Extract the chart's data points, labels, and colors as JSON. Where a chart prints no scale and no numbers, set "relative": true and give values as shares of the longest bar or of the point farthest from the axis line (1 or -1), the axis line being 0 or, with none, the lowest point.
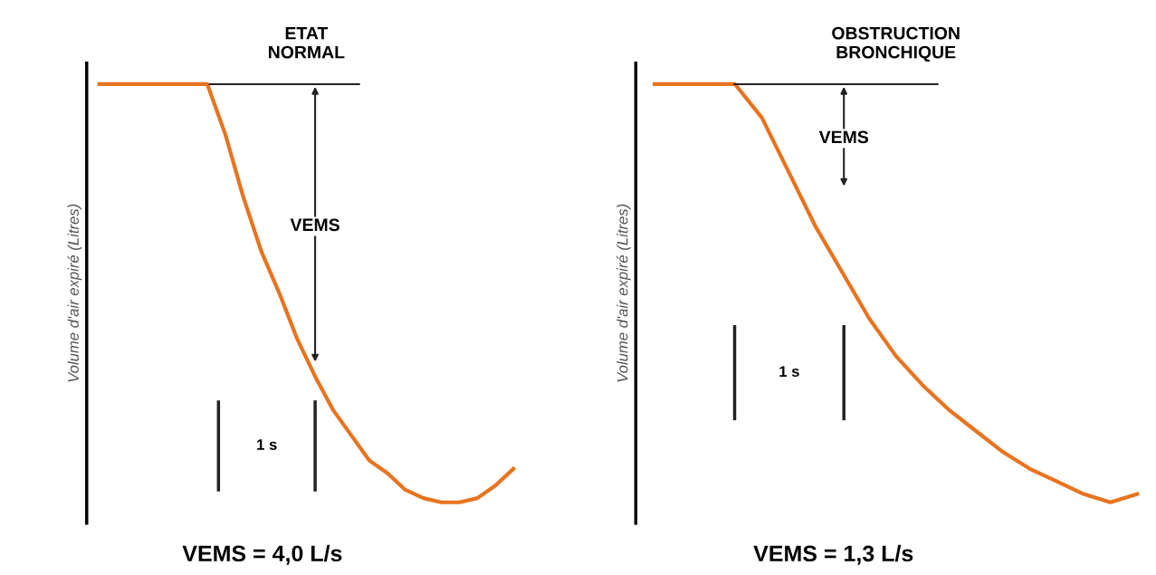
{
  "chart_data": [
    {
      "type": "line",
      "title": "ETAT\nNORMAL",
      "ylabel": "Volume d'air expiré (Litres)",
      "relative": true,
      "tick_labels": false,
      "grid": false,
      "legend": false,
      "marker": "none",
      "line_style": "solid",
      "categories": [
        null,
        null,
        null,
        null,
        null,
        null,
        null,
        null,
        null,
        null,
        null,
        null,
        null,
        null,
        null,
        null,
        null,
        null,
        null,
        null,
        null,
        null,
        null,
        null
      ],
      "series": [
        {
          "color": "#e8731e",
          "values": [
            1.0,
            1.0,
            1.0,
            1.0,
            1.0,
            1.0,
            1.0,
            0.88,
            0.73,
            0.6,
            0.5,
            0.39,
            0.3,
            0.22,
            0.16,
            0.1,
            0.07,
            0.03,
            0.01,
            0.0,
            0.0,
            0.01,
            0.04,
            0.08
          ]
        }
      ],
      "ref_lines": [
        {
          "axis": "y",
          "value": 1.0,
          "color": "#222222"
        }
      ],
      "annotations": [
        "VEMS",
        "1 s",
        "VEMS = 4,0 L/s"
      ]
    },
    {
      "type": "line",
      "title": "OBSTRUCTION\nBRONCHIQUE",
      "ylabel": "Volume d'air expiré (Litres)",
      "relative": true,
      "tick_labels": false,
      "grid": false,
      "legend": false,
      "marker": "none",
      "line_style": "solid",
      "categories": [
        null,
        null,
        null,
        null,
        null,
        null,
        null,
        null,
        null,
        null,
        null,
        null,
        null,
        null,
        null,
        null,
        null,
        null,
        null
      ],
      "series": [
        {
          "color": "#e8731e",
          "values": [
            1.0,
            1.0,
            1.0,
            1.0,
            0.92,
            0.79,
            0.66,
            0.55,
            0.44,
            0.35,
            0.28,
            0.22,
            0.17,
            0.12,
            0.08,
            0.05,
            0.02,
            0.0,
            0.02
          ]
        }
      ],
      "ref_lines": [
        {
          "axis": "y",
          "value": 1.0,
          "color": "#222222"
        }
      ],
      "annotations": [
        "VEMS",
        "1 s",
        "VEMS = 1,3 L/s"
      ]
    }
  ]
}
